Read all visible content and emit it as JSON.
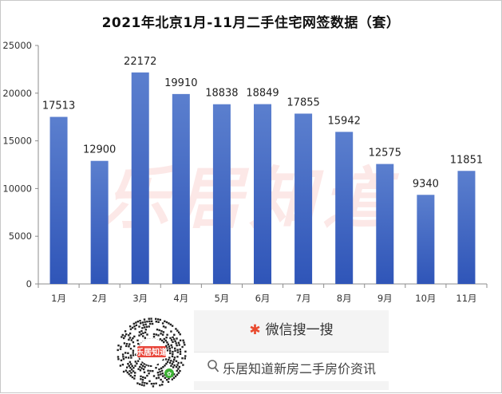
{
  "chart_data": {
    "type": "bar",
    "title": "2021年北京1月-11月二手住宅网签数据（套）",
    "categories": [
      "1月",
      "2月",
      "3月",
      "4月",
      "5月",
      "6月",
      "7月",
      "8月",
      "9月",
      "10月",
      "11月"
    ],
    "values": [
      17513,
      12900,
      22172,
      19910,
      18838,
      18849,
      17855,
      15942,
      12575,
      9340,
      11851
    ],
    "ylim": [
      0,
      25000
    ],
    "yticks": [
      0,
      5000,
      10000,
      15000,
      20000,
      25000
    ],
    "grid": false,
    "legend": "none",
    "bar_color_top": "#5b7fce",
    "bar_color_bottom": "#2f55b8"
  },
  "watermark": {
    "text": "乐居知道"
  },
  "promo": {
    "search_label": "微信搜一搜",
    "query": "乐居知道新房二手房价资讯",
    "qr_badge": "乐居知道"
  }
}
